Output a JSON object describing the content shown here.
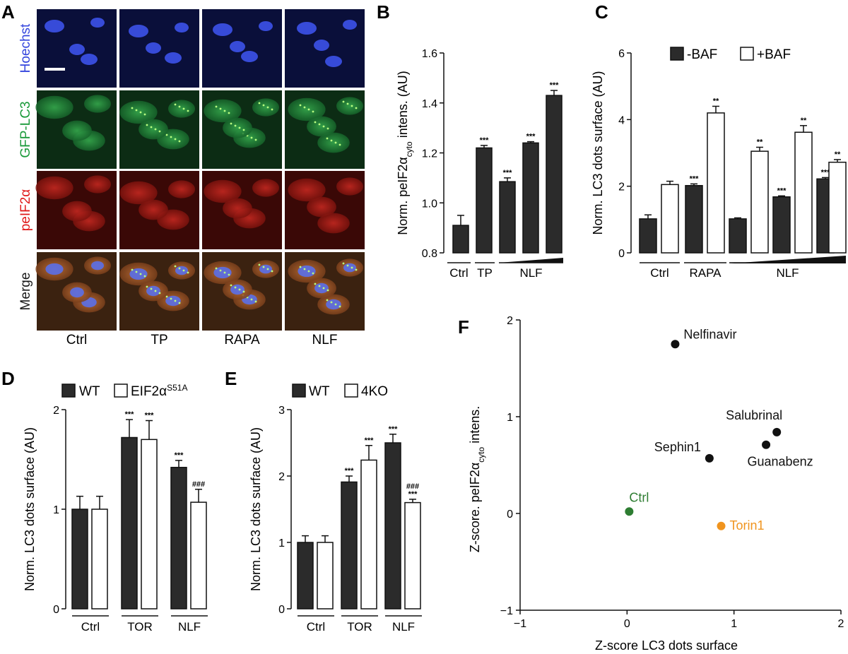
{
  "panels": {
    "A": "A",
    "B": "B",
    "C": "C",
    "D": "D",
    "E": "E",
    "F": "F"
  },
  "micrographs": {
    "rows": [
      {
        "label": "Hoechst",
        "color": "#3344dd",
        "channel": "blue"
      },
      {
        "label": "GFP-LC3",
        "color": "#1a9a3a",
        "channel": "green"
      },
      {
        "label": "peIF2α",
        "color": "#e01a1a",
        "channel": "red"
      },
      {
        "label": "Merge",
        "color": "#1a1a1a",
        "channel": "merge"
      }
    ],
    "columns": [
      "Ctrl",
      "TP",
      "RAPA",
      "NLF"
    ],
    "scale_bar": true
  },
  "chart_data": [
    {
      "panel": "B",
      "type": "bar",
      "ylabel_parts": [
        "Norm. peIF2α",
        "cyto",
        " intens. (AU)"
      ],
      "ylim": [
        0.8,
        1.6
      ],
      "yticks": [
        "0.8",
        "1.0",
        "1.2",
        "1.4",
        "1.6"
      ],
      "bars": [
        {
          "value": 0.91,
          "error": 0.04,
          "fill": "#2b2b2b",
          "sig": ""
        },
        {
          "value": 1.22,
          "error": 0.01,
          "fill": "#2b2b2b",
          "sig": "***"
        },
        {
          "value": 1.085,
          "error": 0.015,
          "fill": "#2b2b2b",
          "sig": "***"
        },
        {
          "value": 1.24,
          "error": 0.005,
          "fill": "#2b2b2b",
          "sig": "***"
        },
        {
          "value": 1.43,
          "error": 0.02,
          "fill": "#2b2b2b",
          "sig": "***"
        }
      ],
      "group_labels": [
        "Ctrl",
        "TP",
        "NLF"
      ],
      "dose_wedge": "NLF"
    },
    {
      "panel": "C",
      "type": "bar",
      "ylabel": "Norm. LC3 dots surface (AU)",
      "ylim": [
        0,
        6
      ],
      "yticks": [
        "0",
        "2",
        "4",
        "6"
      ],
      "legend": [
        "-BAF",
        "+BAF"
      ],
      "bars": [
        {
          "series": "-BAF",
          "value": 1.02,
          "error": 0.12,
          "sig": ""
        },
        {
          "series": "+BAF",
          "value": 2.05,
          "error": 0.1,
          "sig": ""
        },
        {
          "series": "-BAF",
          "value": 2.02,
          "error": 0.05,
          "sig": "***"
        },
        {
          "series": "+BAF",
          "value": 4.2,
          "error": 0.2,
          "sig": "**"
        },
        {
          "series": "-BAF",
          "value": 1.02,
          "error": 0.03,
          "sig": ""
        },
        {
          "series": "+BAF",
          "value": 3.05,
          "error": 0.12,
          "sig": "**"
        },
        {
          "series": "-BAF",
          "value": 1.68,
          "error": 0.03,
          "sig": "***"
        },
        {
          "series": "+BAF",
          "value": 3.62,
          "error": 0.2,
          "sig": "**"
        },
        {
          "series": "-BAF",
          "value": 2.22,
          "error": 0.04,
          "sig": "***"
        },
        {
          "series": "+BAF",
          "value": 2.72,
          "error": 0.08,
          "sig": "**"
        }
      ],
      "group_labels": [
        "Ctrl",
        "RAPA",
        "NLF"
      ]
    },
    {
      "panel": "D",
      "type": "bar",
      "ylabel": "Norm. LC3 dots surface (AU)",
      "ylim": [
        0,
        2
      ],
      "yticks": [
        "0",
        "1",
        "2"
      ],
      "legend": [
        "WT",
        "EIF2α",
        "S51A"
      ],
      "bars": [
        {
          "series": "WT",
          "value": 1.0,
          "error": 0.13,
          "sig": ""
        },
        {
          "series": "EIF2α S51A",
          "value": 1.0,
          "error": 0.13,
          "sig": ""
        },
        {
          "series": "WT",
          "value": 1.72,
          "error": 0.18,
          "sig": "***"
        },
        {
          "series": "EIF2α S51A",
          "value": 1.7,
          "error": 0.19,
          "sig": "***"
        },
        {
          "series": "WT",
          "value": 1.42,
          "error": 0.07,
          "sig": "***"
        },
        {
          "series": "EIF2α S51A",
          "value": 1.07,
          "error": 0.13,
          "sig": "###"
        }
      ],
      "group_labels": [
        "Ctrl",
        "TOR",
        "NLF"
      ]
    },
    {
      "panel": "E",
      "type": "bar",
      "ylabel": "Norm. LC3 dots surface (AU)",
      "ylim": [
        0,
        3
      ],
      "yticks": [
        "0",
        "1",
        "2",
        "3"
      ],
      "legend": [
        "WT",
        "4KO"
      ],
      "bars": [
        {
          "series": "WT",
          "value": 1.0,
          "error": 0.1,
          "sig": ""
        },
        {
          "series": "4KO",
          "value": 1.0,
          "error": 0.1,
          "sig": ""
        },
        {
          "series": "WT",
          "value": 1.91,
          "error": 0.09,
          "sig": "***"
        },
        {
          "series": "4KO",
          "value": 2.24,
          "error": 0.22,
          "sig": "***"
        },
        {
          "series": "WT",
          "value": 2.5,
          "error": 0.13,
          "sig": "***"
        },
        {
          "series": "4KO",
          "value": 1.6,
          "error": 0.05,
          "sig": "###\n***"
        }
      ],
      "group_labels": [
        "Ctrl",
        "TOR",
        "NLF"
      ]
    },
    {
      "panel": "F",
      "type": "scatter",
      "xlabel": "Z-score LC3 dots surface",
      "ylabel_parts": [
        "Z-score. peIF2α",
        "cyto",
        " intens."
      ],
      "xlim": [
        -1,
        2
      ],
      "ylim": [
        -1,
        2
      ],
      "xticks": [
        "−1",
        "0",
        "1",
        "2"
      ],
      "yticks": [
        "−1",
        "0",
        "1",
        "2"
      ],
      "points": [
        {
          "label": "Nelfinavir",
          "x": 0.45,
          "y": 1.75,
          "color": "#111111",
          "label_pos": "right"
        },
        {
          "label": "Salubrinal",
          "x": 1.4,
          "y": 0.84,
          "color": "#111111",
          "label_pos": "above-left"
        },
        {
          "label": "Guanabenz",
          "x": 1.3,
          "y": 0.71,
          "color": "#111111",
          "label_pos": "below"
        },
        {
          "label": "Sephin1",
          "x": 0.77,
          "y": 0.57,
          "color": "#111111",
          "label_pos": "above-left"
        },
        {
          "label": "Ctrl",
          "x": 0.02,
          "y": 0.02,
          "color": "#2e7d32",
          "label_pos": "above-right"
        },
        {
          "label": "Torin1",
          "x": 0.88,
          "y": -0.13,
          "color": "#f0941e",
          "label_pos": "right"
        }
      ]
    }
  ]
}
